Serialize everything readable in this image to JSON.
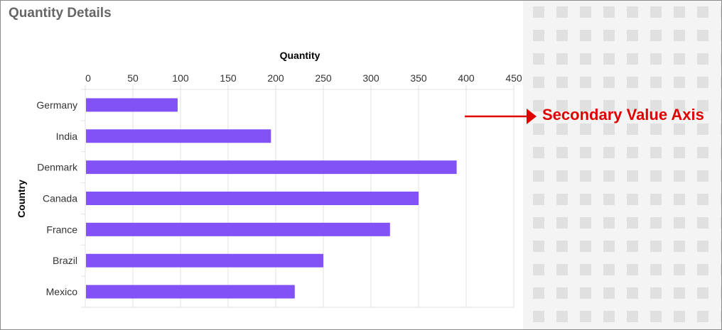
{
  "window": {
    "title": "Quantity Details"
  },
  "annotation": {
    "text": "Secondary Value Axis",
    "color": "#e00000"
  },
  "colors": {
    "bar": "#8352f7",
    "grid": "#e2e2e2",
    "pattern_tile": "#e0e0e0",
    "pattern_bg": "#f4f4f4"
  },
  "chart_data": {
    "type": "bar",
    "orientation": "horizontal",
    "title": "",
    "xlabel": "Quantity",
    "ylabel": "Country",
    "x_axis_position": "top",
    "categories": [
      "Germany",
      "India",
      "Denmark",
      "Canada",
      "France",
      "Brazil",
      "Mexico"
    ],
    "values": [
      97,
      195,
      390,
      350,
      320,
      250,
      220
    ],
    "xlim": [
      0,
      450
    ],
    "xticks": [
      "0",
      "50",
      "100",
      "150",
      "200",
      "250",
      "300",
      "350",
      "400",
      "450"
    ],
    "grid": true,
    "legend": "none"
  }
}
